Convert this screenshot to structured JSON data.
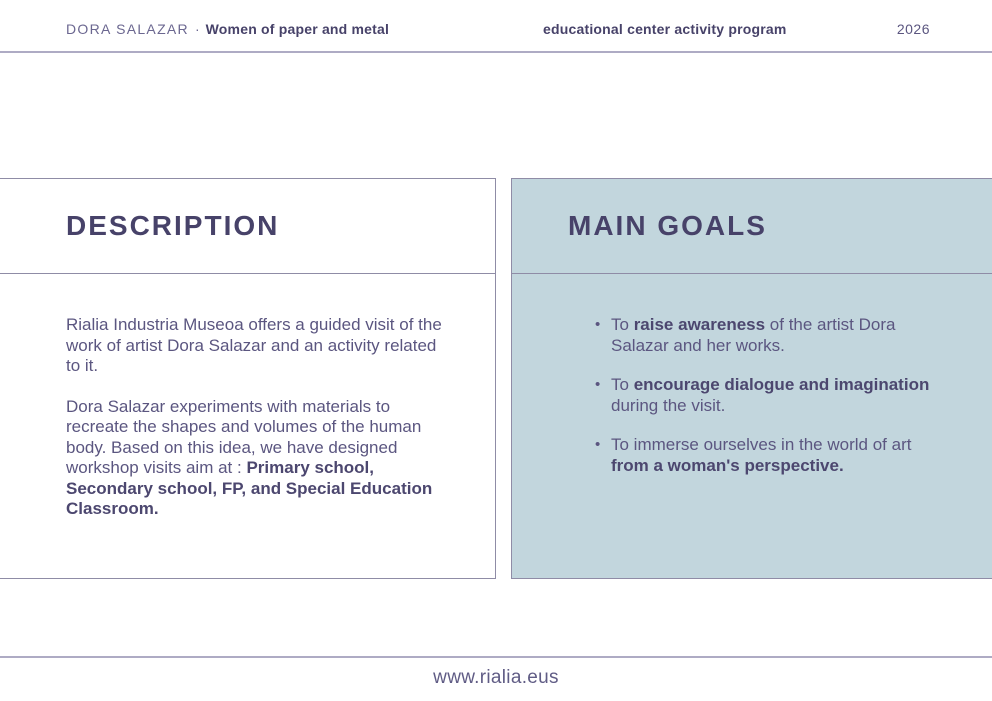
{
  "header": {
    "author": "DORA SALAZAR",
    "separator": "·",
    "work_title": "Women of paper and metal",
    "program": "educational center activity program",
    "year": "2026"
  },
  "description": {
    "title": "DESCRIPTION",
    "paragraphs": [
      {
        "parts": [
          {
            "bold": false,
            "text": "Rialia Industria Museoa offers a guided visit of the work of artist Dora Salazar and an activity related to it."
          }
        ]
      },
      {
        "parts": [
          {
            "bold": false,
            "text": "Dora Salazar experiments with materials to recreate the shapes and volumes of the human body. Based on this idea, we have designed workshop visits aim at : "
          },
          {
            "bold": true,
            "text": "Primary school, Secondary school, FP, and Special Education Classroom."
          }
        ]
      }
    ]
  },
  "goals": {
    "title": "MAIN GOALS",
    "bullet_glyph": "•",
    "items": [
      {
        "parts": [
          {
            "bold": false,
            "text": "To "
          },
          {
            "bold": true,
            "text": "raise awareness"
          },
          {
            "bold": false,
            "text": " of the artist Dora Salazar and her works."
          }
        ]
      },
      {
        "parts": [
          {
            "bold": false,
            "text": "To "
          },
          {
            "bold": true,
            "text": "encourage dialogue and imagination"
          },
          {
            "bold": false,
            "text": " during the visit."
          }
        ]
      },
      {
        "parts": [
          {
            "bold": false,
            "text": "To immerse ourselves in the world of art "
          },
          {
            "bold": true,
            "text": "from a woman's perspective."
          }
        ]
      }
    ]
  },
  "footer": {
    "url": "www.rialia.eus"
  },
  "colors": {
    "accent_dark": "#474269",
    "body_text": "#5b5680",
    "panel_blue": "#c2d6dd",
    "panel_border": "#8f8ca6",
    "rule": "#aeabc4"
  }
}
